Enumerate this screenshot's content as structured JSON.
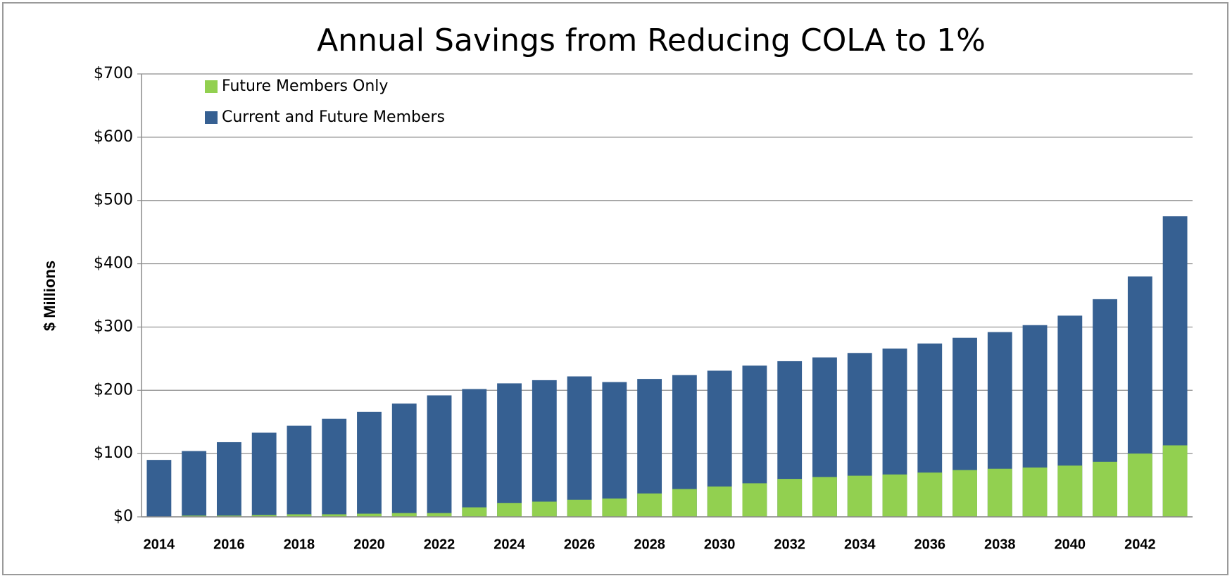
{
  "chart_data": {
    "type": "bar",
    "title": "Annual Savings from Reducing COLA to 1%",
    "y_label": "$ Millions",
    "categories": [
      "2014",
      null,
      "2016",
      null,
      "2018",
      null,
      "2020",
      null,
      "2022",
      null,
      "2024",
      null,
      "2026",
      null,
      "2028",
      null,
      "2030",
      null,
      "2032",
      null,
      "2034",
      null,
      "2036",
      null,
      "2038",
      null,
      "2040",
      null,
      "2042",
      null
    ],
    "series": [
      {
        "name": "Future Members Only",
        "color": "#92d050",
        "values": [
          0,
          2,
          2,
          3,
          4,
          4,
          5,
          6,
          6,
          15,
          22,
          24,
          27,
          29,
          37,
          44,
          48,
          53,
          60,
          63,
          65,
          67,
          70,
          74,
          76,
          78,
          81,
          87,
          100,
          113
        ]
      },
      {
        "name": "Current and Future Members",
        "color": "#366092",
        "values": [
          90,
          104,
          118,
          133,
          144,
          155,
          166,
          179,
          192,
          202,
          211,
          216,
          222,
          213,
          218,
          224,
          231,
          239,
          246,
          252,
          259,
          266,
          274,
          283,
          292,
          303,
          318,
          344,
          380,
          475
        ]
      }
    ],
    "ylim": [
      0,
      700
    ],
    "yticks": [
      {
        "value": 0,
        "label": "$0"
      },
      {
        "value": 100,
        "label": "$100"
      },
      {
        "value": 200,
        "label": "$200"
      },
      {
        "value": 300,
        "label": "$300"
      },
      {
        "value": 400,
        "label": "$400"
      },
      {
        "value": 500,
        "label": "$500"
      },
      {
        "value": 600,
        "label": "$600"
      },
      {
        "value": 700,
        "label": "$700"
      }
    ],
    "grid": true,
    "legend": "top-left"
  }
}
